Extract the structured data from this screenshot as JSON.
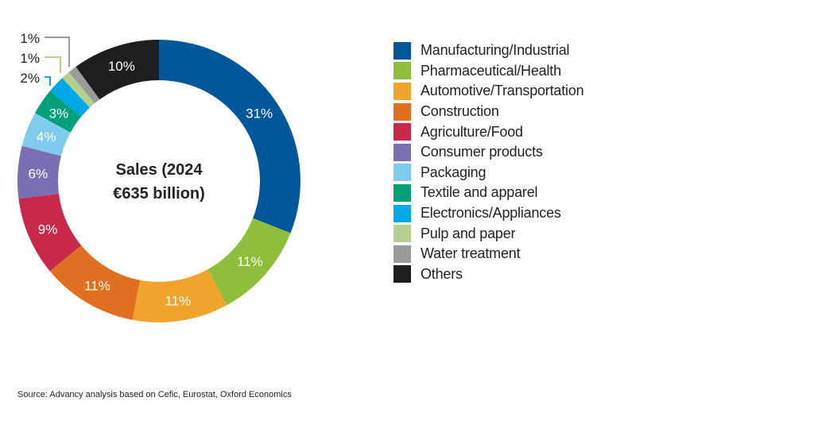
{
  "chart_data": {
    "type": "pie",
    "variant": "donut",
    "center_label": [
      "Sales (2024",
      "€635 billion)"
    ],
    "start": "top",
    "direction": "clockwise",
    "legend_position": "right",
    "slices": [
      {
        "name": "Manufacturing/Industrial",
        "value": 31,
        "label": "31%",
        "color": "#00579a"
      },
      {
        "name": "Pharmaceutical/Health",
        "value": 11,
        "label": "11%",
        "color": "#8dbf3b"
      },
      {
        "name": "Automotive/Transportation",
        "value": 11,
        "label": "11%",
        "color": "#f0a42c"
      },
      {
        "name": "Construction",
        "value": 11,
        "label": "11%",
        "color": "#e07020"
      },
      {
        "name": "Agriculture/Food",
        "value": 9,
        "label": "9%",
        "color": "#c8294a"
      },
      {
        "name": "Consumer products",
        "value": 6,
        "label": "6%",
        "color": "#7b6fb4"
      },
      {
        "name": "Packaging",
        "value": 4,
        "label": "4%",
        "color": "#7fcbee"
      },
      {
        "name": "Textile and apparel",
        "value": 3,
        "label": "3%",
        "color": "#00a07a"
      },
      {
        "name": "Electronics/Appliances",
        "value": 2,
        "label": "2%",
        "color": "#00a8e6"
      },
      {
        "name": "Pulp and paper",
        "value": 1,
        "label": "1%",
        "color": "#b5cf8e"
      },
      {
        "name": "Water treatment",
        "value": 1,
        "label": "1%",
        "color": "#9a9b9d"
      },
      {
        "name": "Others",
        "value": 10,
        "label": "10%",
        "color": "#1f1d1e"
      }
    ]
  },
  "source": "Source: Advancy analysis based on Cefic, Eurostat, Oxford Economics"
}
